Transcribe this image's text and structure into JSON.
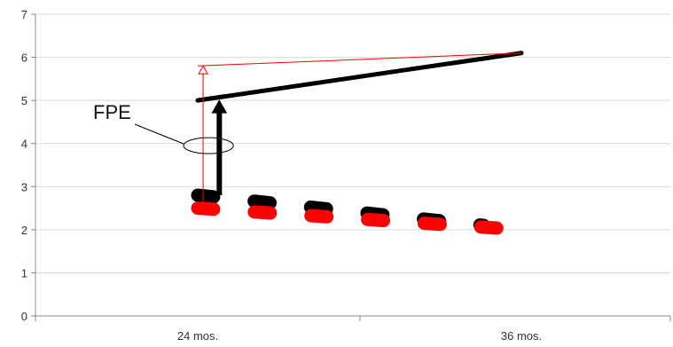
{
  "chart_data": {
    "type": "line",
    "title": "",
    "xlabel": "",
    "ylabel": "",
    "ylim": [
      0,
      7
    ],
    "yticks": [
      0,
      1,
      2,
      3,
      4,
      5,
      6,
      7
    ],
    "x_categories": [
      "24 mos.",
      "36 mos."
    ],
    "grid": true,
    "legend": "none",
    "series": [
      {
        "style": "solid",
        "color": "#000000",
        "points": [
          {
            "x": 24,
            "y": 5.0
          },
          {
            "x": 36,
            "y": 6.1
          }
        ]
      },
      {
        "style": "thin",
        "color": "#ff0000",
        "points": [
          {
            "x": 24,
            "y": 5.8
          },
          {
            "x": 36,
            "y": 6.1
          }
        ]
      },
      {
        "style": "dashed",
        "color": "#000000",
        "points": [
          {
            "x": 24,
            "y": 2.8
          },
          {
            "x": 34.6,
            "y": 2.1
          }
        ]
      },
      {
        "style": "dashed",
        "color": "#ff0000",
        "points": [
          {
            "x": 24,
            "y": 2.5
          },
          {
            "x": 36,
            "y": 2.0
          }
        ]
      }
    ],
    "arrows": [
      {
        "color": "#000000",
        "x": 24.8,
        "from": 2.8,
        "to": 5.0
      },
      {
        "color": "#ff0000",
        "x": 24.2,
        "from": 2.5,
        "to": 5.8
      }
    ],
    "annotation": {
      "text": "FPE",
      "target_x": 24.4,
      "target_y": 3.95
    }
  }
}
